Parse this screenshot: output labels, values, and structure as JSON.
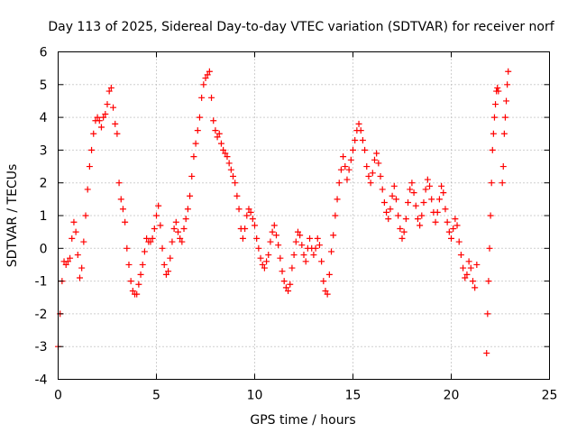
{
  "chart_data": {
    "type": "scatter",
    "title": "Day 113 of 2025, Sidereal Day-to-day VTEC variation (SDTVAR) for receiver norf",
    "xlabel": "GPS time / hours",
    "ylabel": "SDTVAR / TECUs",
    "xlim": [
      0,
      25
    ],
    "ylim": [
      -4,
      6
    ],
    "x_ticks": [
      "0",
      "5",
      "10",
      "15",
      "20",
      "25"
    ],
    "y_ticks": [
      "-4",
      "-3",
      "-2",
      "-1",
      "0",
      "1",
      "2",
      "3",
      "4",
      "5",
      "6"
    ],
    "grid": true,
    "marker": "plus",
    "color": "#ff0000",
    "series": [
      {
        "name": "SDTVAR",
        "x": [
          0.0,
          0.1,
          0.2,
          0.3,
          0.4,
          0.5,
          0.6,
          0.7,
          0.8,
          0.9,
          1.0,
          1.1,
          1.2,
          1.3,
          1.4,
          1.5,
          1.6,
          1.7,
          1.8,
          1.9,
          2.0,
          2.1,
          2.2,
          2.3,
          2.4,
          2.5,
          2.6,
          2.7,
          2.8,
          2.9,
          3.0,
          3.1,
          3.2,
          3.3,
          3.4,
          3.5,
          3.6,
          3.7,
          3.8,
          3.9,
          4.0,
          4.1,
          4.2,
          4.3,
          4.4,
          4.5,
          4.6,
          4.7,
          4.8,
          4.9,
          5.0,
          5.1,
          5.2,
          5.3,
          5.4,
          5.5,
          5.6,
          5.7,
          5.8,
          5.9,
          6.0,
          6.1,
          6.2,
          6.3,
          6.4,
          6.5,
          6.6,
          6.7,
          6.8,
          6.9,
          7.0,
          7.1,
          7.2,
          7.3,
          7.4,
          7.5,
          7.6,
          7.7,
          7.8,
          7.9,
          8.0,
          8.1,
          8.2,
          8.3,
          8.4,
          8.5,
          8.6,
          8.7,
          8.8,
          8.9,
          9.0,
          9.1,
          9.2,
          9.3,
          9.4,
          9.5,
          9.6,
          9.7,
          9.8,
          9.9,
          10.0,
          10.1,
          10.2,
          10.3,
          10.4,
          10.5,
          10.6,
          10.7,
          10.8,
          10.9,
          11.0,
          11.1,
          11.2,
          11.3,
          11.4,
          11.5,
          11.6,
          11.7,
          11.8,
          11.9,
          12.0,
          12.1,
          12.2,
          12.3,
          12.4,
          12.5,
          12.6,
          12.7,
          12.8,
          12.9,
          13.0,
          13.1,
          13.2,
          13.3,
          13.4,
          13.5,
          13.6,
          13.7,
          13.8,
          13.9,
          14.0,
          14.1,
          14.2,
          14.3,
          14.4,
          14.5,
          14.6,
          14.7,
          14.8,
          14.9,
          15.0,
          15.1,
          15.2,
          15.3,
          15.4,
          15.5,
          15.6,
          15.7,
          15.8,
          15.9,
          16.0,
          16.1,
          16.2,
          16.3,
          16.4,
          16.5,
          16.6,
          16.7,
          16.8,
          16.9,
          17.0,
          17.1,
          17.2,
          17.3,
          17.4,
          17.5,
          17.6,
          17.7,
          17.8,
          17.9,
          18.0,
          18.1,
          18.2,
          18.3,
          18.4,
          18.5,
          18.6,
          18.7,
          18.8,
          18.9,
          19.0,
          19.1,
          19.2,
          19.3,
          19.4,
          19.5,
          19.6,
          19.7,
          19.8,
          19.9,
          20.0,
          20.1,
          20.2,
          20.3,
          20.4,
          20.5,
          20.6,
          20.7,
          20.8,
          20.9,
          21.0,
          21.1,
          21.2,
          21.3,
          21.8,
          21.85,
          21.9,
          21.95,
          22.0,
          22.05,
          22.1,
          22.15,
          22.2,
          22.25,
          22.3,
          22.35,
          22.4,
          22.6,
          22.65,
          22.7,
          22.75,
          22.8,
          22.85,
          22.9
        ],
        "y": [
          -3.0,
          -2.0,
          -1.0,
          -0.4,
          -0.5,
          -0.4,
          -0.3,
          0.3,
          0.8,
          0.5,
          -0.2,
          -0.9,
          -0.6,
          0.2,
          1.0,
          1.8,
          2.5,
          3.0,
          3.5,
          3.9,
          4.0,
          3.9,
          3.7,
          4.0,
          4.1,
          4.4,
          4.8,
          4.9,
          4.3,
          3.8,
          3.5,
          2.0,
          1.5,
          1.2,
          0.8,
          0.0,
          -0.5,
          -1.0,
          -1.3,
          -1.4,
          -1.4,
          -1.1,
          -0.8,
          -0.5,
          -0.1,
          0.3,
          0.2,
          0.2,
          0.3,
          0.6,
          1.0,
          1.3,
          0.7,
          0.0,
          -0.5,
          -0.8,
          -0.7,
          -0.3,
          0.2,
          0.6,
          0.8,
          0.5,
          0.3,
          0.2,
          0.6,
          0.9,
          1.2,
          1.6,
          2.2,
          2.8,
          3.2,
          3.6,
          4.0,
          4.6,
          5.0,
          5.2,
          5.3,
          5.4,
          4.6,
          3.9,
          3.6,
          3.4,
          3.5,
          3.2,
          3.0,
          2.9,
          2.8,
          2.6,
          2.4,
          2.2,
          2.0,
          1.6,
          1.2,
          0.6,
          0.3,
          0.6,
          1.0,
          1.2,
          1.1,
          0.9,
          0.7,
          0.3,
          0.0,
          -0.3,
          -0.5,
          -0.6,
          -0.4,
          -0.2,
          0.2,
          0.5,
          0.7,
          0.4,
          0.1,
          -0.3,
          -0.7,
          -1.0,
          -1.2,
          -1.3,
          -1.1,
          -0.6,
          -0.2,
          0.2,
          0.5,
          0.4,
          0.1,
          -0.2,
          -0.4,
          0.0,
          0.3,
          0.0,
          -0.2,
          0.0,
          0.3,
          0.1,
          -0.4,
          -1.0,
          -1.3,
          -1.4,
          -0.8,
          -0.1,
          0.4,
          1.0,
          1.5,
          2.0,
          2.4,
          2.8,
          2.5,
          2.1,
          2.4,
          2.7,
          3.0,
          3.3,
          3.6,
          3.8,
          3.6,
          3.3,
          3.0,
          2.5,
          2.2,
          2.0,
          2.3,
          2.7,
          2.9,
          2.6,
          2.2,
          1.8,
          1.4,
          1.1,
          0.9,
          1.2,
          1.6,
          1.9,
          1.5,
          1.0,
          0.6,
          0.3,
          0.5,
          0.9,
          1.4,
          1.8,
          2.0,
          1.7,
          1.3,
          0.9,
          0.7,
          1.0,
          1.4,
          1.8,
          2.1,
          1.9,
          1.5,
          1.1,
          0.8,
          1.1,
          1.5,
          1.9,
          1.7,
          1.2,
          0.8,
          0.5,
          0.3,
          0.6,
          0.9,
          0.7,
          0.2,
          -0.2,
          -0.6,
          -0.9,
          -0.8,
          -0.4,
          -0.6,
          -1.0,
          -1.2,
          -0.5,
          -3.2,
          -2.0,
          -1.0,
          0.0,
          1.0,
          2.0,
          3.0,
          3.5,
          4.0,
          4.4,
          4.8,
          4.9,
          4.8,
          2.0,
          2.5,
          3.5,
          4.0,
          4.5,
          5.0,
          5.4
        ]
      }
    ]
  }
}
